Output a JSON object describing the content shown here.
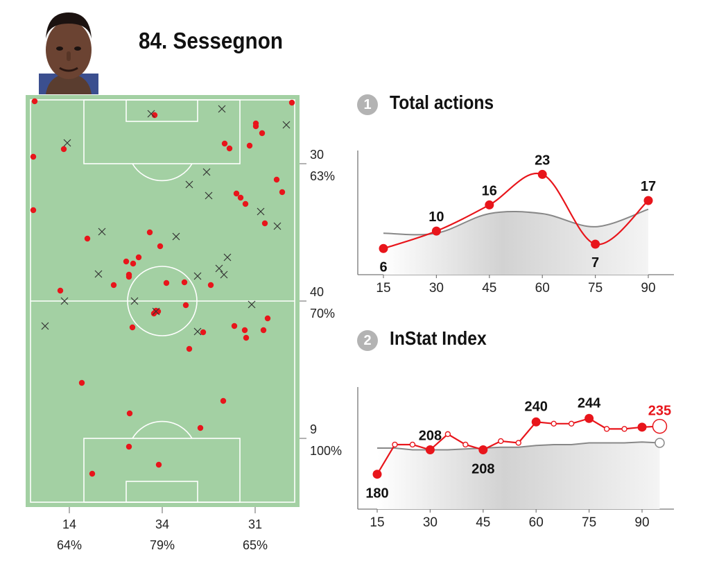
{
  "player": {
    "title": "84. Sessegnon",
    "photo_icon": "player-photo-icon"
  },
  "pitch_map": {
    "bottom_zones": [
      {
        "count": "14",
        "pct": "64%"
      },
      {
        "count": "34",
        "pct": "79%"
      },
      {
        "count": "31",
        "pct": "65%"
      }
    ],
    "side_zones": [
      {
        "count": "30",
        "pct": "63%"
      },
      {
        "count": "40",
        "pct": "70%"
      },
      {
        "count": "9",
        "pct": "100%"
      }
    ],
    "colors": {
      "pitch": "#a3d0a3",
      "success_dot": "#e8151b",
      "fail_mark": "#333333",
      "lines": "#ffffff"
    }
  },
  "sections": [
    {
      "number": "1",
      "title": "Total actions"
    },
    {
      "number": "2",
      "title": "InStat Index"
    }
  ],
  "chart_data": [
    {
      "type": "line",
      "title": "Total actions",
      "x": [
        15,
        30,
        45,
        60,
        75,
        90
      ],
      "x_ticks": [
        "15",
        "30",
        "45",
        "60",
        "75",
        "90"
      ],
      "series": [
        {
          "values": [
            6,
            10,
            16,
            23,
            7,
            17
          ],
          "labels": [
            "6",
            "10",
            "16",
            "23",
            "7",
            "17"
          ],
          "color": "#e8151b"
        },
        {
          "values": [
            9.5,
            9.5,
            14,
            14,
            11,
            15
          ],
          "color": "#888888"
        }
      ],
      "ylim": [
        0,
        28
      ],
      "grid": false
    },
    {
      "type": "line",
      "title": "InStat Index",
      "x": [
        15,
        20,
        25,
        30,
        35,
        40,
        45,
        50,
        55,
        60,
        65,
        70,
        75,
        80,
        85,
        90,
        95
      ],
      "x_ticks": [
        "15",
        "30",
        "45",
        "60",
        "75",
        "90"
      ],
      "series": [
        {
          "values": [
            180,
            214,
            214,
            208,
            226,
            214,
            208,
            218,
            216,
            240,
            238,
            238,
            244,
            232,
            232,
            234,
            235
          ],
          "labels": [
            {
              "x": 15,
              "text": "180"
            },
            {
              "x": 30,
              "text": "208"
            },
            {
              "x": 45,
              "text": "208"
            },
            {
              "x": 60,
              "text": "240"
            },
            {
              "x": 75,
              "text": "244"
            },
            {
              "x": 95,
              "text": "235"
            }
          ],
          "color": "#e8151b"
        },
        {
          "values": [
            210,
            210,
            208,
            208,
            208,
            209,
            210,
            211,
            211,
            213,
            214,
            214,
            216,
            216,
            216,
            217,
            216
          ],
          "color": "#888888"
        }
      ],
      "ylim": [
        140,
        280
      ],
      "grid": false
    }
  ]
}
